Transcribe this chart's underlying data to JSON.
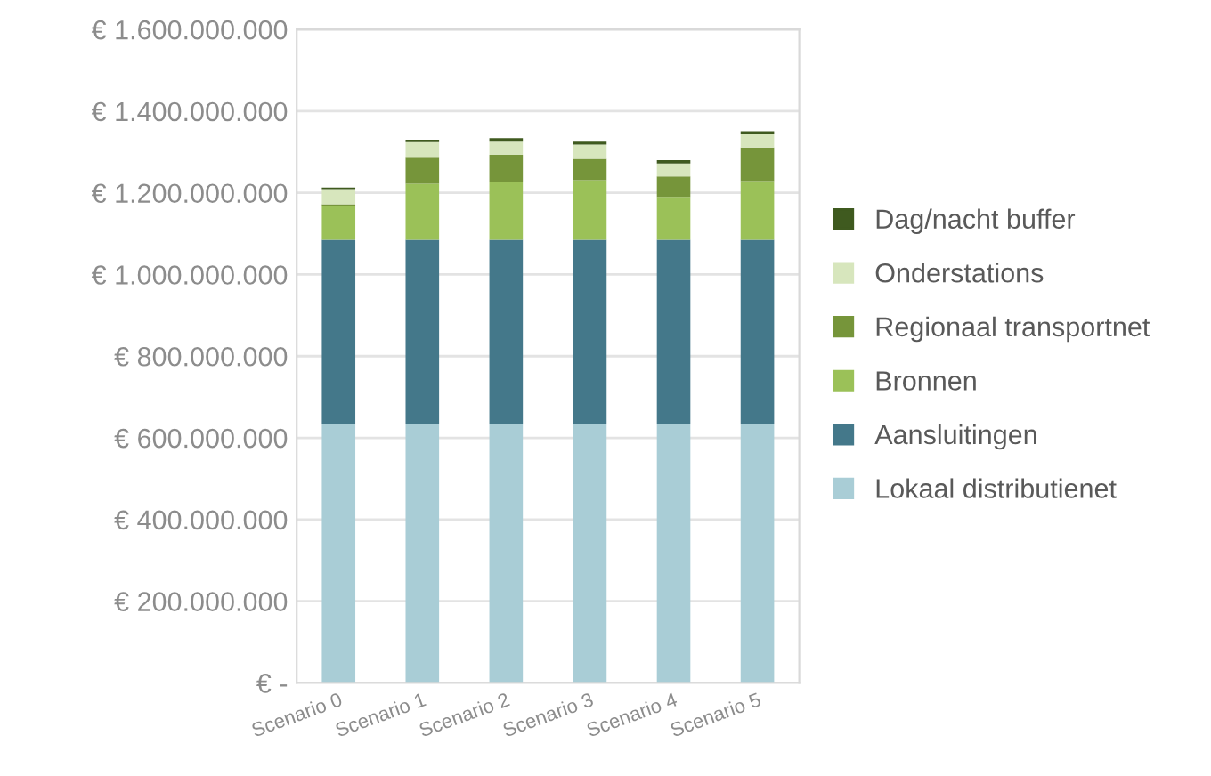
{
  "chart_data": {
    "type": "bar",
    "stacked": true,
    "categories": [
      "Scenario 0",
      "Scenario 1",
      "Scenario 2",
      "Scenario 3",
      "Scenario 4",
      "Scenario 5"
    ],
    "series": [
      {
        "name": "Lokaal distributienet",
        "color": "#a9cdd6",
        "values": [
          635000000,
          635000000,
          635000000,
          635000000,
          635000000,
          635000000
        ]
      },
      {
        "name": "Aansluitingen",
        "color": "#44788a",
        "values": [
          450000000,
          450000000,
          450000000,
          450000000,
          450000000,
          450000000
        ]
      },
      {
        "name": "Bronnen",
        "color": "#9bc158",
        "values": [
          83000000,
          137000000,
          142000000,
          146000000,
          105000000,
          144000000
        ]
      },
      {
        "name": "Regionaal transportnet",
        "color": "#76953a",
        "values": [
          4000000,
          66000000,
          66000000,
          52000000,
          50000000,
          82000000
        ]
      },
      {
        "name": "Onderstations",
        "color": "#d7e6bd",
        "values": [
          37000000,
          36000000,
          32000000,
          35000000,
          32000000,
          32000000
        ]
      },
      {
        "name": "Dag/nacht buffer",
        "color": "#3f5a1f",
        "values": [
          4000000,
          6000000,
          9000000,
          7000000,
          8000000,
          8000000
        ]
      }
    ],
    "ylim": [
      0,
      1600000000
    ],
    "yticks": [
      {
        "value": 0,
        "label": "€ -"
      },
      {
        "value": 200000000,
        "label": "€ 200.000.000"
      },
      {
        "value": 400000000,
        "label": "€ 400.000.000"
      },
      {
        "value": 600000000,
        "label": "€ 600.000.000"
      },
      {
        "value": 800000000,
        "label": "€ 800.000.000"
      },
      {
        "value": 1000000000,
        "label": "€ 1.000.000.000"
      },
      {
        "value": 1200000000,
        "label": "€ 1.200.000.000"
      },
      {
        "value": 1400000000,
        "label": "€ 1.400.000.000"
      },
      {
        "value": 1600000000,
        "label": "€ 1.600.000.000"
      }
    ],
    "grid": "y",
    "legend": "right"
  }
}
